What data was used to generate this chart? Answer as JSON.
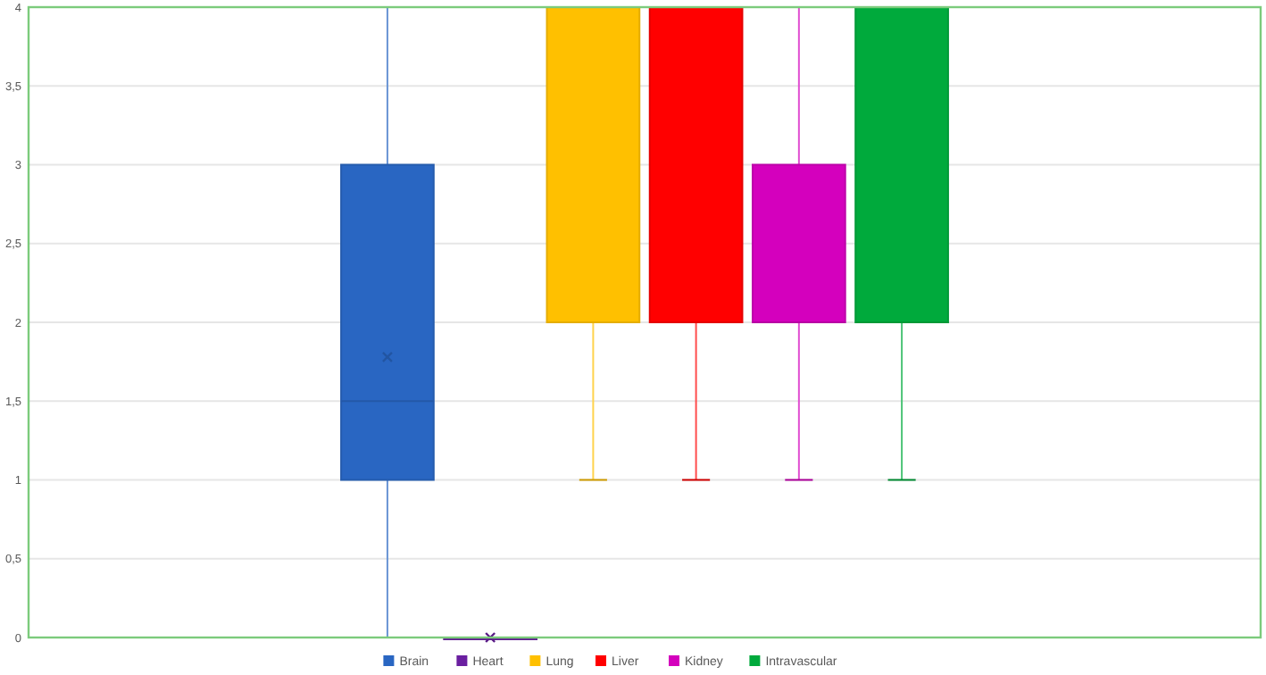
{
  "chart_data": {
    "type": "box",
    "categories": [
      null
    ],
    "series": [
      {
        "name": "Brain",
        "color": "#2966c2",
        "boxes": [
          {
            "low": 0,
            "q1": 1,
            "median": 1.5,
            "q3": 3,
            "high": 4,
            "mean": 1.78
          }
        ]
      },
      {
        "name": "Heart",
        "color": "#6a1fa0",
        "boxes": [
          {
            "low": 0,
            "q1": 0,
            "median": 0,
            "q3": 0,
            "high": 0,
            "mean": 0
          }
        ]
      },
      {
        "name": "Lung",
        "color": "#ffc000",
        "boxes": [
          {
            "low": 1,
            "q1": 2,
            "median": 4,
            "q3": 4,
            "high": 4
          }
        ]
      },
      {
        "name": "Liver",
        "color": "#ff0000",
        "boxes": [
          {
            "low": 1,
            "q1": 2,
            "median": 4,
            "q3": 4,
            "high": 4
          }
        ]
      },
      {
        "name": "Kidney",
        "color": "#d400bd",
        "boxes": [
          {
            "low": 1,
            "q1": 2,
            "median": 2,
            "q3": 3,
            "high": 4
          }
        ]
      },
      {
        "name": "Intravascular",
        "color": "#00aa3c",
        "boxes": [
          {
            "low": 1,
            "q1": 2,
            "median": 4,
            "q3": 4,
            "high": 4
          }
        ]
      }
    ],
    "ylim": [
      0,
      4
    ],
    "yticks": [
      0,
      {
        "value": 0.5,
        "label": "0,5"
      },
      1,
      {
        "value": 1.5,
        "label": "1,5"
      },
      2,
      {
        "value": 2.5,
        "label": "2,5"
      },
      3,
      {
        "value": 3.5,
        "label": "3,5"
      },
      4
    ],
    "grid": "y",
    "legend": "bottom"
  }
}
